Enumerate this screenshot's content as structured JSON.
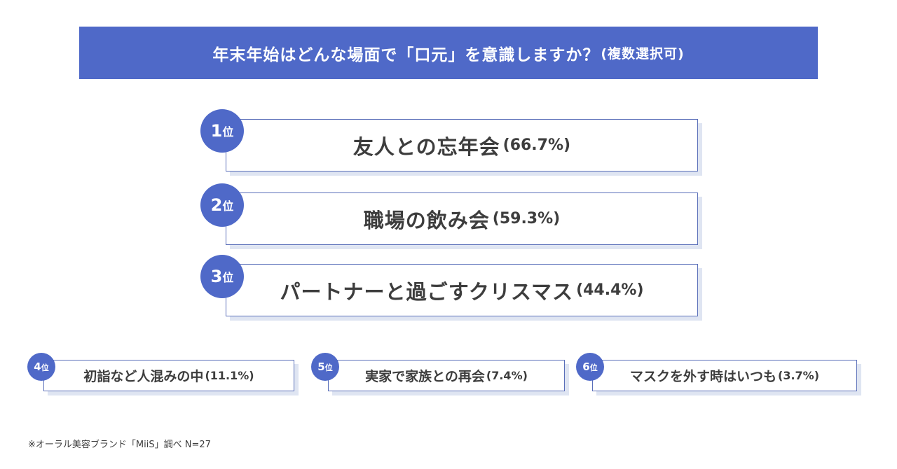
{
  "header": {
    "title": "年末年始はどんな場面で「口元」を意識しますか？",
    "subtitle": "(複数選択可)"
  },
  "chart_data": {
    "type": "table",
    "title": "年末年始はどんな場面で「口元」を意識しますか？(複数選択可)",
    "unit_suffix": "位",
    "items": [
      {
        "rank": "1",
        "label": "友人との忘年会",
        "pct_text": "(66.7%)",
        "value": 66.7
      },
      {
        "rank": "2",
        "label": "職場の飲み会",
        "pct_text": "(59.3%)",
        "value": 59.3
      },
      {
        "rank": "3",
        "label": "パートナーと過ごすクリスマス",
        "pct_text": "(44.4%)",
        "value": 44.4
      },
      {
        "rank": "4",
        "label": "初詣など人混みの中",
        "pct_text": "(11.1%)",
        "value": 11.1
      },
      {
        "rank": "5",
        "label": "実家で家族との再会",
        "pct_text": "(7.4%)",
        "value": 7.4
      },
      {
        "rank": "6",
        "label": "マスクを外す時はいつも",
        "pct_text": "(3.7%)",
        "value": 3.7
      }
    ]
  },
  "footnote": "※オーラル美容ブランド「MiiS」調べ N=27",
  "colors": {
    "accent": "#4f69c8",
    "border": "#5a6fb9",
    "shadow": "#dfe5f2",
    "text": "#3d3d3d"
  }
}
